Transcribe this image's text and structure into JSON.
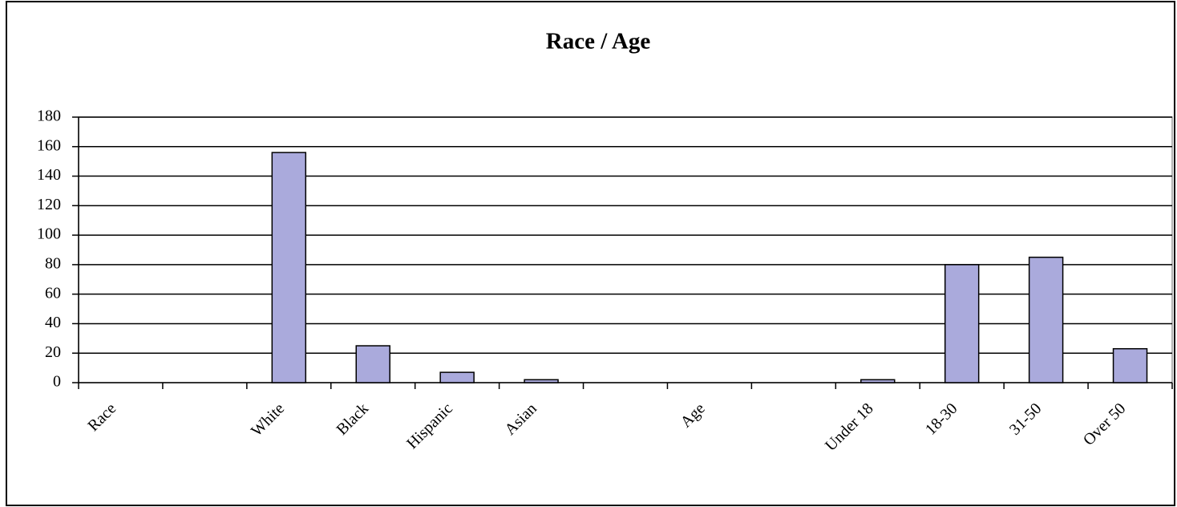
{
  "chart_data": {
    "type": "bar",
    "title": "Race / Age",
    "categories": [
      "Race",
      null,
      "White",
      "Black",
      "Hispanic",
      "Asian",
      null,
      "Age",
      null,
      "Under 18",
      "18-30",
      "31-50",
      "Over 50"
    ],
    "values": [
      null,
      null,
      156,
      25,
      7,
      2,
      null,
      null,
      null,
      2,
      80,
      85,
      23
    ],
    "color": "#aaaadc",
    "ylim": [
      0,
      180
    ],
    "yticks": [
      0,
      20,
      40,
      60,
      80,
      100,
      120,
      140,
      160,
      180
    ],
    "grid": true
  }
}
